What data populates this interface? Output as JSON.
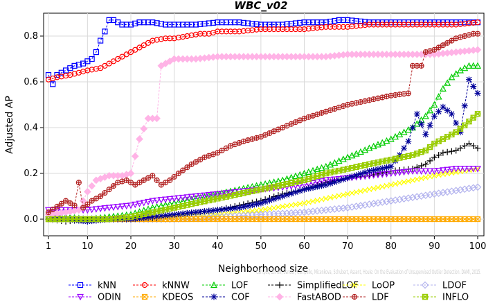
{
  "chart_data": {
    "type": "line",
    "title": "WBC_v02",
    "xlabel": "Neighborhood size",
    "ylabel": "Adjusted AP",
    "xlim": [
      1,
      100
    ],
    "ylim": [
      -0.03,
      0.88
    ],
    "x_ticks": [
      1,
      10,
      20,
      30,
      40,
      50,
      60,
      70,
      80,
      90,
      100
    ],
    "y_ticks": [
      0.0,
      0.2,
      0.4,
      0.6,
      0.8
    ],
    "y_tick_labels": [
      "0.0",
      "0.2",
      "0.4",
      "0.6",
      "0.8"
    ],
    "grid": true,
    "legend_position": "bottom",
    "watermark": "Campos, Zimek, Sander, Campello, Micenkova, Schubert, Assent, Houle: On the Evaluation of Unsupervised Outlier Detection. DAMI, 2015.",
    "series": [
      {
        "name": "kNN",
        "color": "#0000ff",
        "marker": "square",
        "points": [
          [
            1,
            0.63
          ],
          [
            2,
            0.59
          ],
          [
            3,
            0.63
          ],
          [
            5,
            0.65
          ],
          [
            7,
            0.67
          ],
          [
            9,
            0.68
          ],
          [
            11,
            0.7
          ],
          [
            12,
            0.73
          ],
          [
            13,
            0.78
          ],
          [
            14,
            0.82
          ],
          [
            15,
            0.87
          ],
          [
            16,
            0.87
          ],
          [
            18,
            0.85
          ],
          [
            20,
            0.85
          ],
          [
            22,
            0.86
          ],
          [
            25,
            0.86
          ],
          [
            28,
            0.85
          ],
          [
            30,
            0.85
          ],
          [
            35,
            0.85
          ],
          [
            40,
            0.86
          ],
          [
            45,
            0.86
          ],
          [
            50,
            0.85
          ],
          [
            55,
            0.85
          ],
          [
            60,
            0.86
          ],
          [
            65,
            0.86
          ],
          [
            68,
            0.87
          ],
          [
            70,
            0.87
          ],
          [
            75,
            0.86
          ],
          [
            80,
            0.86
          ],
          [
            85,
            0.86
          ],
          [
            90,
            0.86
          ],
          [
            95,
            0.86
          ],
          [
            100,
            0.86
          ]
        ]
      },
      {
        "name": "kNNW",
        "color": "#ff0000",
        "marker": "circle",
        "points": [
          [
            1,
            0.61
          ],
          [
            3,
            0.62
          ],
          [
            6,
            0.63
          ],
          [
            10,
            0.65
          ],
          [
            13,
            0.66
          ],
          [
            15,
            0.68
          ],
          [
            17,
            0.7
          ],
          [
            19,
            0.72
          ],
          [
            21,
            0.74
          ],
          [
            23,
            0.76
          ],
          [
            25,
            0.78
          ],
          [
            28,
            0.79
          ],
          [
            30,
            0.79
          ],
          [
            33,
            0.8
          ],
          [
            36,
            0.81
          ],
          [
            38,
            0.81
          ],
          [
            40,
            0.82
          ],
          [
            45,
            0.82
          ],
          [
            50,
            0.83
          ],
          [
            55,
            0.83
          ],
          [
            60,
            0.83
          ],
          [
            65,
            0.84
          ],
          [
            70,
            0.84
          ],
          [
            75,
            0.85
          ],
          [
            80,
            0.85
          ],
          [
            85,
            0.85
          ],
          [
            90,
            0.85
          ],
          [
            95,
            0.85
          ],
          [
            100,
            0.86
          ]
        ]
      },
      {
        "name": "LOF",
        "color": "#00cc00",
        "marker": "triangle-up",
        "points": [
          [
            1,
            0.01
          ],
          [
            5,
            0.01
          ],
          [
            10,
            0.0
          ],
          [
            15,
            0.01
          ],
          [
            20,
            0.02
          ],
          [
            25,
            0.05
          ],
          [
            30,
            0.07
          ],
          [
            35,
            0.09
          ],
          [
            40,
            0.11
          ],
          [
            45,
            0.13
          ],
          [
            50,
            0.15
          ],
          [
            55,
            0.17
          ],
          [
            60,
            0.2
          ],
          [
            65,
            0.23
          ],
          [
            70,
            0.27
          ],
          [
            75,
            0.31
          ],
          [
            80,
            0.35
          ],
          [
            85,
            0.4
          ],
          [
            88,
            0.45
          ],
          [
            90,
            0.5
          ],
          [
            92,
            0.57
          ],
          [
            94,
            0.62
          ],
          [
            96,
            0.65
          ],
          [
            98,
            0.67
          ],
          [
            100,
            0.67
          ]
        ]
      },
      {
        "name": "SimplifiedLOF",
        "color": "#000000",
        "marker": "plus",
        "points": [
          [
            1,
            0.0
          ],
          [
            5,
            -0.01
          ],
          [
            10,
            0.0
          ],
          [
            15,
            0.0
          ],
          [
            20,
            0.0
          ],
          [
            25,
            0.0
          ],
          [
            30,
            0.02
          ],
          [
            35,
            0.03
          ],
          [
            40,
            0.04
          ],
          [
            45,
            0.06
          ],
          [
            50,
            0.08
          ],
          [
            55,
            0.11
          ],
          [
            60,
            0.13
          ],
          [
            65,
            0.16
          ],
          [
            70,
            0.18
          ],
          [
            75,
            0.19
          ],
          [
            80,
            0.21
          ],
          [
            85,
            0.22
          ],
          [
            88,
            0.24
          ],
          [
            90,
            0.27
          ],
          [
            92,
            0.29
          ],
          [
            95,
            0.3
          ],
          [
            98,
            0.33
          ],
          [
            100,
            0.31
          ]
        ]
      },
      {
        "name": "LoOP",
        "color": "#ffff00",
        "marker": "x",
        "points": [
          [
            1,
            0.0
          ],
          [
            10,
            0.0
          ],
          [
            20,
            0.0
          ],
          [
            30,
            0.01
          ],
          [
            40,
            0.02
          ],
          [
            50,
            0.04
          ],
          [
            60,
            0.07
          ],
          [
            70,
            0.11
          ],
          [
            80,
            0.15
          ],
          [
            90,
            0.19
          ],
          [
            100,
            0.22
          ]
        ]
      },
      {
        "name": "LDOF",
        "color": "#b3b3ee",
        "marker": "diamond",
        "points": [
          [
            1,
            0.0
          ],
          [
            10,
            0.0
          ],
          [
            20,
            0.0
          ],
          [
            30,
            0.0
          ],
          [
            40,
            0.01
          ],
          [
            50,
            0.02
          ],
          [
            60,
            0.03
          ],
          [
            70,
            0.05
          ],
          [
            80,
            0.08
          ],
          [
            90,
            0.11
          ],
          [
            100,
            0.14
          ]
        ]
      },
      {
        "name": "ODIN",
        "color": "#9900ff",
        "marker": "triangle-down",
        "points": [
          [
            1,
            0.04
          ],
          [
            5,
            0.04
          ],
          [
            10,
            0.04
          ],
          [
            15,
            0.05
          ],
          [
            20,
            0.06
          ],
          [
            25,
            0.08
          ],
          [
            30,
            0.09
          ],
          [
            35,
            0.1
          ],
          [
            40,
            0.11
          ],
          [
            45,
            0.12
          ],
          [
            50,
            0.13
          ],
          [
            55,
            0.14
          ],
          [
            60,
            0.15
          ],
          [
            65,
            0.17
          ],
          [
            70,
            0.18
          ],
          [
            75,
            0.19
          ],
          [
            80,
            0.2
          ],
          [
            85,
            0.21
          ],
          [
            90,
            0.21
          ],
          [
            95,
            0.22
          ],
          [
            100,
            0.22
          ]
        ]
      },
      {
        "name": "KDEOS",
        "color": "#ffaa00",
        "marker": "square-x",
        "points": [
          [
            1,
            0.0
          ],
          [
            10,
            0.0
          ],
          [
            20,
            0.0
          ],
          [
            30,
            0.0
          ],
          [
            40,
            0.0
          ],
          [
            50,
            0.0
          ],
          [
            60,
            0.0
          ],
          [
            70,
            0.0
          ],
          [
            80,
            0.0
          ],
          [
            90,
            0.0
          ],
          [
            100,
            0.0
          ]
        ]
      },
      {
        "name": "COF",
        "color": "#000099",
        "marker": "asterisk",
        "points": [
          [
            1,
            0.01
          ],
          [
            5,
            0.0
          ],
          [
            10,
            -0.01
          ],
          [
            15,
            0.0
          ],
          [
            20,
            0.0
          ],
          [
            25,
            0.01
          ],
          [
            30,
            0.02
          ],
          [
            35,
            0.03
          ],
          [
            40,
            0.04
          ],
          [
            45,
            0.05
          ],
          [
            50,
            0.07
          ],
          [
            55,
            0.1
          ],
          [
            60,
            0.13
          ],
          [
            65,
            0.15
          ],
          [
            70,
            0.18
          ],
          [
            75,
            0.21
          ],
          [
            80,
            0.23
          ],
          [
            82,
            0.28
          ],
          [
            84,
            0.34
          ],
          [
            86,
            0.46
          ],
          [
            88,
            0.37
          ],
          [
            90,
            0.45
          ],
          [
            92,
            0.49
          ],
          [
            94,
            0.46
          ],
          [
            96,
            0.38
          ],
          [
            98,
            0.61
          ],
          [
            100,
            0.55
          ]
        ]
      },
      {
        "name": "FastABOD",
        "color": "#ffb3e6",
        "marker": "diamond-filled",
        "points": [
          [
            1,
            0.02
          ],
          [
            5,
            0.03
          ],
          [
            8,
            0.04
          ],
          [
            10,
            0.12
          ],
          [
            12,
            0.17
          ],
          [
            15,
            0.19
          ],
          [
            18,
            0.19
          ],
          [
            20,
            0.2
          ],
          [
            22,
            0.35
          ],
          [
            24,
            0.44
          ],
          [
            26,
            0.44
          ],
          [
            27,
            0.67
          ],
          [
            30,
            0.7
          ],
          [
            35,
            0.7
          ],
          [
            40,
            0.71
          ],
          [
            45,
            0.71
          ],
          [
            50,
            0.71
          ],
          [
            55,
            0.71
          ],
          [
            60,
            0.71
          ],
          [
            65,
            0.71
          ],
          [
            70,
            0.72
          ],
          [
            75,
            0.72
          ],
          [
            80,
            0.72
          ],
          [
            85,
            0.72
          ],
          [
            90,
            0.72
          ],
          [
            95,
            0.73
          ],
          [
            100,
            0.74
          ]
        ]
      },
      {
        "name": "LDF",
        "color": "#b22222",
        "marker": "circle-plus",
        "points": [
          [
            1,
            0.03
          ],
          [
            5,
            0.08
          ],
          [
            7,
            0.06
          ],
          [
            8,
            0.16
          ],
          [
            9,
            0.05
          ],
          [
            11,
            0.08
          ],
          [
            13,
            0.1
          ],
          [
            15,
            0.13
          ],
          [
            17,
            0.16
          ],
          [
            19,
            0.17
          ],
          [
            21,
            0.15
          ],
          [
            23,
            0.17
          ],
          [
            25,
            0.19
          ],
          [
            27,
            0.15
          ],
          [
            29,
            0.17
          ],
          [
            31,
            0.2
          ],
          [
            34,
            0.24
          ],
          [
            37,
            0.27
          ],
          [
            40,
            0.29
          ],
          [
            43,
            0.32
          ],
          [
            46,
            0.34
          ],
          [
            50,
            0.36
          ],
          [
            55,
            0.4
          ],
          [
            60,
            0.44
          ],
          [
            65,
            0.47
          ],
          [
            70,
            0.5
          ],
          [
            75,
            0.52
          ],
          [
            80,
            0.54
          ],
          [
            84,
            0.55
          ],
          [
            85,
            0.67
          ],
          [
            87,
            0.67
          ],
          [
            88,
            0.73
          ],
          [
            90,
            0.74
          ],
          [
            93,
            0.77
          ],
          [
            95,
            0.79
          ],
          [
            97,
            0.8
          ],
          [
            99,
            0.81
          ],
          [
            100,
            0.81
          ]
        ]
      },
      {
        "name": "INFLO",
        "color": "#99cc00",
        "marker": "hexstar",
        "points": [
          [
            1,
            0.0
          ],
          [
            5,
            0.0
          ],
          [
            10,
            0.0
          ],
          [
            15,
            0.0
          ],
          [
            20,
            0.01
          ],
          [
            25,
            0.03
          ],
          [
            30,
            0.05
          ],
          [
            35,
            0.07
          ],
          [
            40,
            0.09
          ],
          [
            45,
            0.11
          ],
          [
            50,
            0.13
          ],
          [
            55,
            0.15
          ],
          [
            60,
            0.17
          ],
          [
            65,
            0.2
          ],
          [
            70,
            0.22
          ],
          [
            75,
            0.24
          ],
          [
            80,
            0.26
          ],
          [
            85,
            0.28
          ],
          [
            88,
            0.3
          ],
          [
            90,
            0.33
          ],
          [
            93,
            0.36
          ],
          [
            95,
            0.38
          ],
          [
            97,
            0.41
          ],
          [
            100,
            0.46
          ]
        ]
      }
    ]
  }
}
